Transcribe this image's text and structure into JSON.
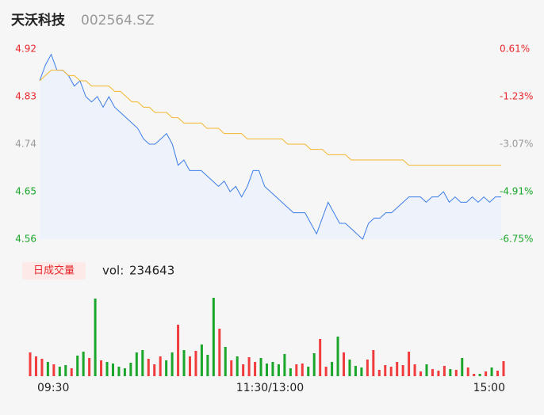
{
  "header": {
    "name": "天沃科技",
    "code": "002564.SZ"
  },
  "chart_data": [
    {
      "type": "line",
      "x": [
        0,
        3,
        6,
        9,
        12,
        15,
        18,
        21,
        24,
        27,
        30,
        33,
        36,
        39,
        42,
        45,
        48,
        51,
        54,
        57,
        60,
        63,
        66,
        69,
        72,
        75,
        78,
        81,
        84,
        87,
        90,
        93,
        96,
        99,
        102,
        105,
        108,
        111,
        114,
        117,
        120,
        123,
        126,
        129,
        132,
        135,
        138,
        141,
        144,
        147,
        150,
        153,
        156,
        159,
        162,
        165,
        168,
        171,
        174,
        177,
        180,
        183,
        186,
        189,
        192,
        195,
        198,
        201,
        204,
        207,
        210,
        213,
        216,
        219,
        222,
        225,
        228,
        231,
        234,
        237,
        240
      ],
      "xlim": [
        0,
        240
      ],
      "ylim": [
        4.56,
        4.92
      ],
      "yticks": [
        4.92,
        4.83,
        4.74,
        4.65,
        4.56
      ],
      "ytick_colors": [
        "#e8262b",
        "#e8262b",
        "#999999",
        "#1aa62a",
        "#1aa62a"
      ],
      "y2lim": [
        -6.75,
        0.61
      ],
      "y2ticks": [
        {
          "value": 0.61,
          "label": "0.61%"
        },
        {
          "value": -1.23,
          "label": "-1.23%"
        },
        {
          "value": -3.07,
          "label": "-3.07%"
        },
        {
          "value": -4.91,
          "label": "-4.91%"
        },
        {
          "value": -6.75,
          "label": "-6.75%"
        }
      ],
      "y2tick_colors": [
        "#e8262b",
        "#e8262b",
        "#999999",
        "#1aa62a",
        "#1aa62a"
      ],
      "series": [
        {
          "color": "#3b7de9",
          "fill": true,
          "values": [
            4.86,
            4.89,
            4.91,
            4.88,
            4.88,
            4.87,
            4.85,
            4.86,
            4.83,
            4.82,
            4.83,
            4.81,
            4.83,
            4.81,
            4.8,
            4.79,
            4.78,
            4.77,
            4.75,
            4.74,
            4.74,
            4.75,
            4.76,
            4.74,
            4.7,
            4.71,
            4.69,
            4.69,
            4.69,
            4.68,
            4.67,
            4.66,
            4.67,
            4.65,
            4.66,
            4.64,
            4.66,
            4.69,
            4.69,
            4.66,
            4.65,
            4.64,
            4.63,
            4.62,
            4.61,
            4.61,
            4.61,
            4.59,
            4.57,
            4.6,
            4.63,
            4.61,
            4.59,
            4.59,
            4.58,
            4.57,
            4.56,
            4.59,
            4.6,
            4.6,
            4.61,
            4.61,
            4.62,
            4.63,
            4.64,
            4.64,
            4.64,
            4.63,
            4.64,
            4.64,
            4.65,
            4.63,
            4.64,
            4.63,
            4.63,
            4.64,
            4.63,
            4.64,
            4.63,
            4.64,
            4.64
          ]
        },
        {
          "color": "#f5b731",
          "fill": false,
          "values": [
            4.86,
            4.87,
            4.88,
            4.88,
            4.88,
            4.87,
            4.87,
            4.86,
            4.86,
            4.85,
            4.85,
            4.85,
            4.85,
            4.84,
            4.84,
            4.83,
            4.82,
            4.82,
            4.81,
            4.81,
            4.8,
            4.8,
            4.8,
            4.79,
            4.79,
            4.78,
            4.78,
            4.78,
            4.78,
            4.77,
            4.77,
            4.77,
            4.76,
            4.76,
            4.76,
            4.76,
            4.75,
            4.75,
            4.75,
            4.75,
            4.75,
            4.75,
            4.75,
            4.74,
            4.74,
            4.74,
            4.74,
            4.73,
            4.73,
            4.73,
            4.72,
            4.72,
            4.72,
            4.72,
            4.71,
            4.71,
            4.71,
            4.71,
            4.71,
            4.71,
            4.71,
            4.71,
            4.71,
            4.71,
            4.7,
            4.7,
            4.7,
            4.7,
            4.7,
            4.7,
            4.7,
            4.7,
            4.7,
            4.7,
            4.7,
            4.7,
            4.7,
            4.7,
            4.7,
            4.7,
            4.7
          ]
        }
      ]
    },
    {
      "type": "bar",
      "legend_label": "日成交量",
      "vol_label": "vol:",
      "vol_total": 234643,
      "x": [
        0,
        3,
        6,
        9,
        12,
        15,
        18,
        21,
        24,
        27,
        30,
        33,
        36,
        39,
        42,
        45,
        48,
        51,
        54,
        57,
        60,
        63,
        66,
        69,
        72,
        75,
        78,
        81,
        84,
        87,
        90,
        93,
        96,
        99,
        102,
        105,
        108,
        111,
        114,
        117,
        120,
        123,
        126,
        129,
        132,
        135,
        138,
        141,
        144,
        147,
        150,
        153,
        156,
        159,
        162,
        165,
        168,
        171,
        174,
        177,
        180,
        183,
        186,
        189,
        192,
        195,
        198,
        201,
        204,
        207,
        210,
        213,
        216,
        219,
        222,
        225,
        228,
        231,
        234,
        237,
        240
      ],
      "xlim": [
        0,
        240
      ],
      "xticks": [
        {
          "value": 0,
          "label": "09:30"
        },
        {
          "value": 120,
          "label": "11:30/13:00"
        },
        {
          "value": 240,
          "label": "15:00"
        }
      ],
      "ylim": [
        0,
        10000
      ],
      "up_color": "#f03c3c",
      "down_color": "#1aa62a",
      "values": [
        3000,
        2500,
        2200,
        1800,
        1500,
        1200,
        1400,
        1000,
        2600,
        3100,
        2300,
        9800,
        2000,
        1800,
        1600,
        1200,
        1000,
        1700,
        3000,
        3300,
        2200,
        1500,
        2500,
        2000,
        3000,
        6500,
        3300,
        2500,
        3200,
        4000,
        2700,
        9900,
        6000,
        3700,
        2000,
        2500,
        1500,
        2400,
        1800,
        2300,
        1600,
        1800,
        1500,
        2800,
        1000,
        1500,
        1600,
        1200,
        2900,
        4700,
        1200,
        1800,
        5000,
        3000,
        2100,
        1300,
        1100,
        2100,
        3300,
        800,
        1400,
        1200,
        1800,
        1400,
        3100,
        1500,
        600,
        1500,
        900,
        700,
        1300,
        900,
        800,
        2300,
        1100,
        300,
        300,
        600,
        1100,
        700,
        1900
      ]
    }
  ]
}
